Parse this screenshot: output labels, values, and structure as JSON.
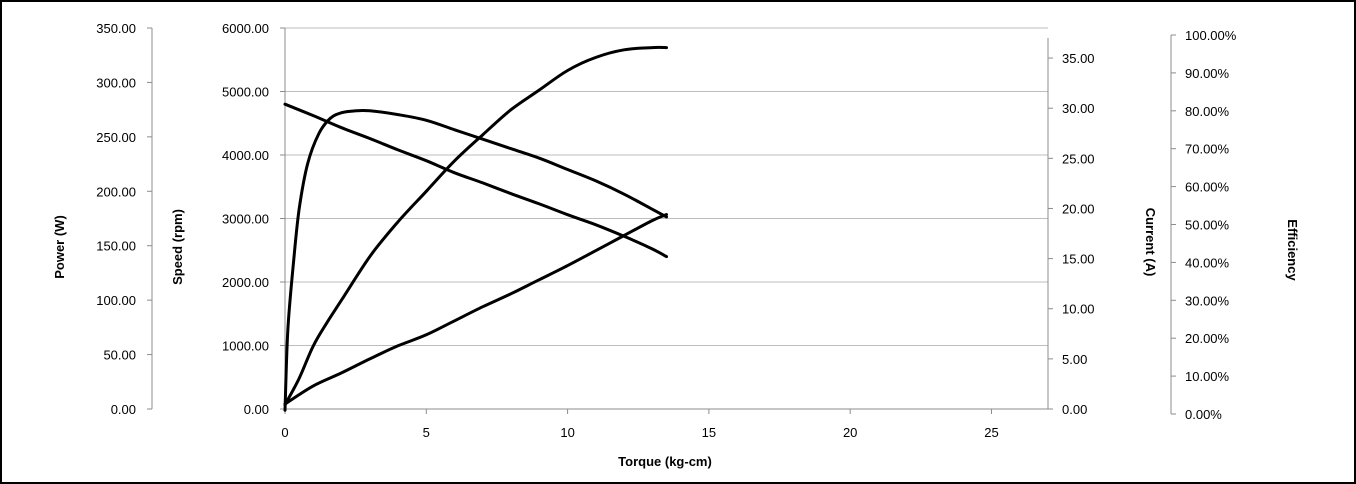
{
  "chart_data": {
    "type": "line",
    "grid": true,
    "legend": "none",
    "series_color": "#000000",
    "xlabel": "Torque (kg-cm)",
    "xlim": [
      0,
      27
    ],
    "x_ticks": [
      "0",
      "5",
      "10",
      "15",
      "20",
      "25"
    ],
    "axes": {
      "power": {
        "label": "Power (W)",
        "ylim": [
          0,
          350
        ],
        "ticks": [
          "0.00",
          "50.00",
          "100.00",
          "150.00",
          "200.00",
          "250.00",
          "300.00",
          "350.00"
        ]
      },
      "speed": {
        "label": "Speed (rpm)",
        "ylim": [
          0,
          6000
        ],
        "ticks": [
          "0.00",
          "1000.00",
          "2000.00",
          "3000.00",
          "4000.00",
          "5000.00",
          "6000.00"
        ]
      },
      "current": {
        "label": "Current (A)",
        "ylim": [
          0,
          37
        ],
        "ticks": [
          "0.00",
          "5.00",
          "10.00",
          "15.00",
          "20.00",
          "25.00",
          "30.00",
          "35.00"
        ]
      },
      "efficiency": {
        "label": "Efficiency",
        "ylim": [
          0,
          1
        ],
        "ticks": [
          "0.00%",
          "10.00%",
          "20.00%",
          "30.00%",
          "40.00%",
          "50.00%",
          "60.00%",
          "70.00%",
          "80.00%",
          "90.00%",
          "100.00%"
        ]
      }
    },
    "series": [
      {
        "axis": "speed",
        "x": [
          0,
          1,
          2,
          3,
          4,
          5,
          6,
          7,
          8,
          9,
          10,
          11,
          12,
          13,
          13.5
        ],
        "values": [
          4800,
          4620,
          4430,
          4260,
          4080,
          3910,
          3720,
          3560,
          3390,
          3230,
          3060,
          2900,
          2720,
          2520,
          2400
        ]
      },
      {
        "axis": "power",
        "x": [
          0,
          0.5,
          1,
          1.5,
          2,
          3,
          4,
          5,
          6,
          7,
          8,
          9,
          10,
          11,
          12,
          13,
          13.5
        ],
        "values": [
          4,
          28,
          58,
          80,
          100,
          140,
          172,
          200,
          228,
          252,
          275,
          293,
          311,
          323,
          330,
          332,
          332
        ]
      },
      {
        "axis": "current",
        "x": [
          0,
          1,
          2,
          3,
          4,
          5,
          6,
          7,
          8,
          9,
          10,
          11,
          12,
          13,
          13.5
        ],
        "values": [
          0.5,
          2.3,
          3.6,
          5.0,
          6.3,
          7.4,
          8.8,
          10.2,
          11.5,
          12.9,
          14.3,
          15.8,
          17.3,
          18.8,
          19.4
        ]
      },
      {
        "axis": "efficiency",
        "x": [
          0,
          0.1,
          0.3,
          0.5,
          0.8,
          1.2,
          1.6,
          2.0,
          2.5,
          3.0,
          4.0,
          5.0,
          6.0,
          7.0,
          8.0,
          9.0,
          10.0,
          11.0,
          12.0,
          13.0,
          13.5
        ],
        "values": [
          0.01,
          0.22,
          0.4,
          0.54,
          0.66,
          0.74,
          0.78,
          0.795,
          0.8,
          0.8,
          0.79,
          0.775,
          0.75,
          0.725,
          0.7,
          0.675,
          0.645,
          0.615,
          0.58,
          0.54,
          0.52
        ]
      }
    ]
  }
}
